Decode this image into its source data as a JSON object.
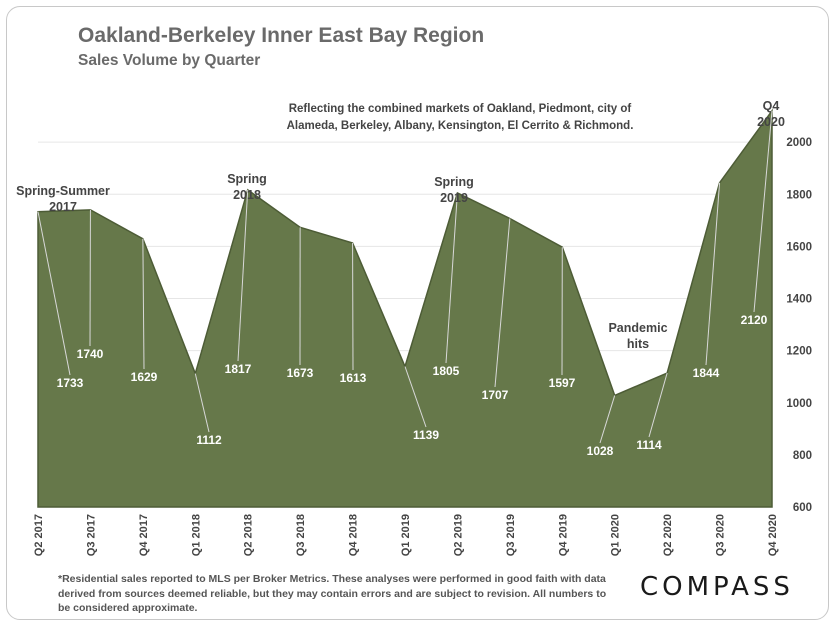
{
  "title": "Oakland-Berkeley Inner East Bay Region",
  "subtitle": "Sales Volume by Quarter",
  "note": "Reflecting the combined markets of Oakland, Piedmont, city of Alameda, Berkeley, Albany, Kensington, El Cerrito & Richmond.",
  "footnote": "*Residential sales reported to MLS per Broker Metrics. These analyses were performed in good faith with data derived from sources deemed reliable, but they may contain errors and are subject to revision. All numbers to be considered approximate.",
  "logo": "COMPASS",
  "colors": {
    "area_fill": "#66784a",
    "area_edge": "#4d5c36",
    "text": "#444444"
  },
  "chart_data": {
    "type": "area",
    "categories": [
      "Q2 2017",
      "Q3 2017",
      "Q4 2017",
      "Q1 2018",
      "Q2 2018",
      "Q3 2018",
      "Q4 2018",
      "Q1 2019",
      "Q2 2019",
      "Q3 2019",
      "Q4 2019",
      "Q1 2020",
      "Q2 2020",
      "Q3 2020",
      "Q4 2020"
    ],
    "values": [
      1733,
      1740,
      1629,
      1112,
      1817,
      1673,
      1613,
      1139,
      1805,
      1707,
      1597,
      1028,
      1114,
      1844,
      2120
    ],
    "ylim": [
      600,
      2200
    ],
    "yticks": [
      600,
      800,
      1000,
      1200,
      1400,
      1600,
      1800,
      2000
    ],
    "y_axis_side": "right",
    "grid": true,
    "annotations": [
      {
        "text": [
          "Spring-Summer",
          "2017"
        ]
      },
      {
        "text": [
          "Spring",
          "2018"
        ]
      },
      {
        "text": [
          "Spring",
          "2019"
        ]
      },
      {
        "text": [
          "Pandemic",
          "hits"
        ]
      },
      {
        "text": [
          "Q4",
          "2020"
        ]
      }
    ]
  }
}
